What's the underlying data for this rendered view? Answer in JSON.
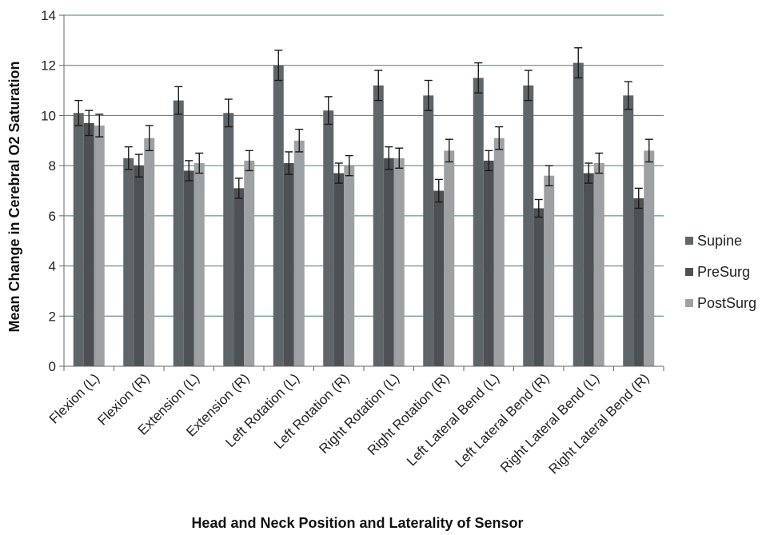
{
  "chart_data": {
    "type": "bar",
    "title": "",
    "xlabel": "Head and Neck Position and Laterality of Sensor",
    "ylabel": "Mean Change in Cerebral O2 Saturation",
    "ylim": [
      0,
      14
    ],
    "yticks": [
      0,
      2,
      4,
      6,
      8,
      10,
      12,
      14
    ],
    "grid": true,
    "legend_position": "right",
    "error_bars": true,
    "categories": [
      "Flexion (L)",
      "Flexion (R)",
      "Extension (L)",
      "Extension (R)",
      "Left Rotation (L)",
      "Left Rotation (R)",
      "Right Rotation (L)",
      "Right Rotation (R)",
      "Left Lateral Bend (L)",
      "Left Lateral Bend (R)",
      "Right Lateral Bend (L)",
      "Right Lateral Bend (R)"
    ],
    "series": [
      {
        "name": "Supine",
        "color": "#5f6669",
        "values": [
          10.1,
          8.3,
          10.6,
          10.1,
          12.0,
          10.2,
          11.2,
          10.8,
          11.5,
          11.2,
          12.1,
          10.8
        ],
        "errors": [
          0.5,
          0.45,
          0.55,
          0.55,
          0.6,
          0.55,
          0.6,
          0.6,
          0.6,
          0.6,
          0.6,
          0.55
        ]
      },
      {
        "name": "PreSurg",
        "color": "#4d5154",
        "values": [
          9.7,
          8.0,
          7.8,
          7.1,
          8.1,
          7.7,
          8.3,
          7.0,
          8.2,
          6.3,
          7.7,
          6.7
        ],
        "errors": [
          0.5,
          0.45,
          0.4,
          0.4,
          0.45,
          0.4,
          0.45,
          0.45,
          0.4,
          0.35,
          0.4,
          0.4
        ]
      },
      {
        "name": "PostSurg",
        "color": "#9da1a3",
        "values": [
          9.6,
          9.1,
          8.1,
          8.2,
          9.0,
          8.0,
          8.3,
          8.6,
          9.1,
          7.6,
          8.1,
          8.6
        ],
        "errors": [
          0.45,
          0.5,
          0.4,
          0.4,
          0.45,
          0.4,
          0.4,
          0.45,
          0.45,
          0.4,
          0.4,
          0.45
        ]
      }
    ]
  }
}
